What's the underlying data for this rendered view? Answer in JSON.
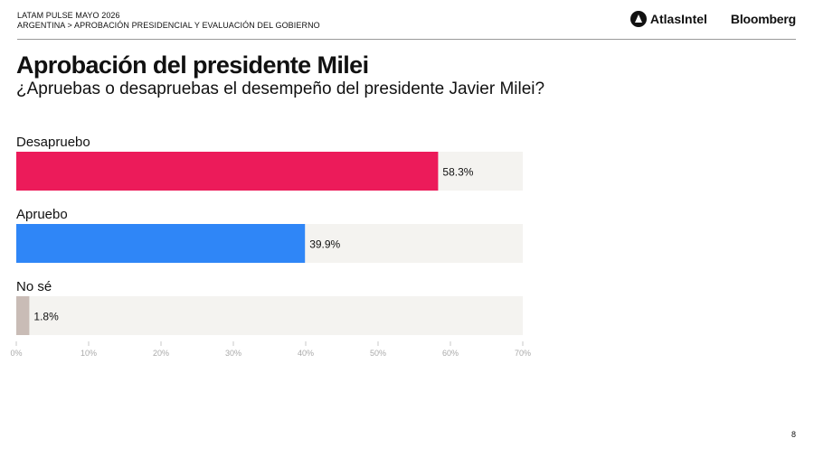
{
  "header": {
    "report": "LATAM PULSE MAYO 2026",
    "breadcrumb": "ARGENTINA > APROBACIÓN PRESIDENCIAL Y EVALUACIÓN DEL GOBIERNO",
    "logo_atlas": "AtlasIntel",
    "logo_bloomberg": "Bloomberg"
  },
  "page_number": "8",
  "chart_data": {
    "type": "bar",
    "orientation": "horizontal",
    "title": "Aprobación del presidente Milei",
    "subtitle": "¿Apruebas o desapruebas el desempeño del presidente Javier Milei?",
    "categories": [
      "Desapruebo",
      "Apruebo",
      "No sé"
    ],
    "values": [
      58.3,
      39.9,
      1.8
    ],
    "value_labels": [
      "58.3%",
      "39.9%",
      "1.8%"
    ],
    "colors": [
      "#ec1b5a",
      "#2f86f7",
      "#c9bcb6"
    ],
    "track_color": "#f4f3f0",
    "xlim": [
      0,
      70
    ],
    "xticks": [
      "0%",
      "10%",
      "20%",
      "30%",
      "40%",
      "50%",
      "60%",
      "70%"
    ],
    "grid": false,
    "legend": "none"
  }
}
